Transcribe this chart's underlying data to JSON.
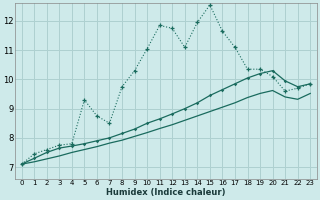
{
  "xlabel": "Humidex (Indice chaleur)",
  "bg_color": "#ceeaea",
  "grid_color": "#aed0d0",
  "line_color": "#1a6b5e",
  "xlim": [
    -0.5,
    23.5
  ],
  "ylim": [
    6.6,
    12.6
  ],
  "xticks": [
    0,
    1,
    2,
    3,
    4,
    5,
    6,
    7,
    8,
    9,
    10,
    11,
    12,
    13,
    14,
    15,
    16,
    17,
    18,
    19,
    20,
    21,
    22,
    23
  ],
  "yticks": [
    7,
    8,
    9,
    10,
    11,
    12
  ],
  "main_x": [
    0,
    1,
    2,
    3,
    4,
    5,
    6,
    7,
    8,
    9,
    10,
    11,
    12,
    13,
    14,
    15,
    16,
    17,
    18,
    19,
    20,
    21,
    22,
    23
  ],
  "main_y": [
    7.1,
    7.45,
    7.6,
    7.75,
    7.8,
    9.3,
    8.75,
    8.5,
    9.75,
    10.3,
    11.05,
    11.85,
    11.75,
    11.1,
    11.95,
    12.55,
    11.65,
    11.1,
    10.35,
    10.35,
    10.1,
    9.6,
    9.7,
    9.85
  ],
  "line2_x": [
    0,
    1,
    2,
    3,
    4,
    5,
    6,
    7,
    8,
    9,
    10,
    11,
    12,
    13,
    14,
    15,
    16,
    17,
    18,
    19,
    20,
    21,
    22,
    23
  ],
  "line2_y": [
    7.1,
    7.3,
    7.5,
    7.65,
    7.72,
    7.8,
    7.9,
    8.0,
    8.15,
    8.3,
    8.5,
    8.65,
    8.82,
    9.0,
    9.2,
    9.45,
    9.65,
    9.85,
    10.05,
    10.2,
    10.3,
    9.95,
    9.75,
    9.85
  ],
  "line3_x": [
    0,
    1,
    2,
    3,
    4,
    5,
    6,
    7,
    8,
    9,
    10,
    11,
    12,
    13,
    14,
    15,
    16,
    17,
    18,
    19,
    20,
    21,
    22,
    23
  ],
  "line3_y": [
    7.1,
    7.18,
    7.28,
    7.38,
    7.5,
    7.6,
    7.7,
    7.82,
    7.92,
    8.05,
    8.18,
    8.32,
    8.45,
    8.6,
    8.75,
    8.9,
    9.05,
    9.2,
    9.38,
    9.52,
    9.62,
    9.4,
    9.32,
    9.52
  ]
}
